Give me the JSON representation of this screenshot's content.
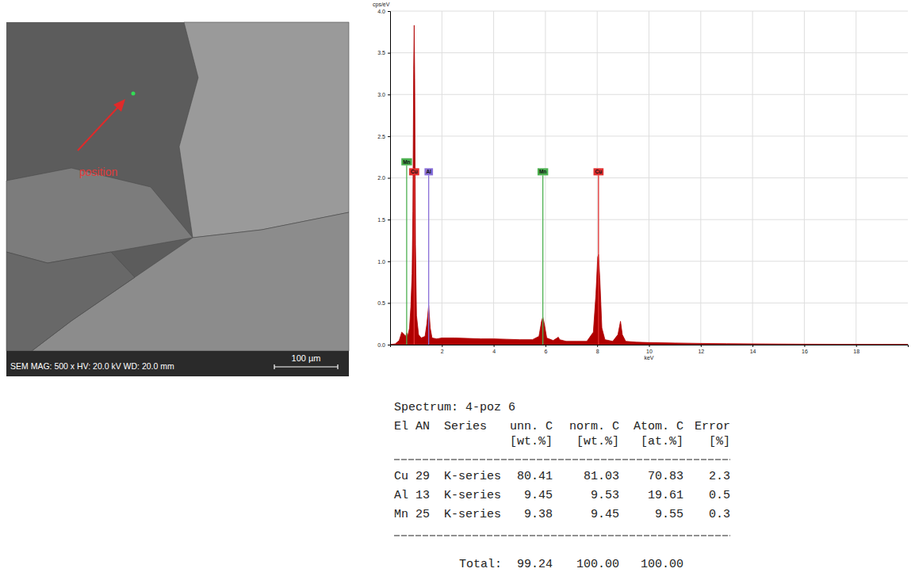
{
  "chart_data": {
    "type": "area",
    "x_label": "keV",
    "y_label": "cps/eV",
    "color": "#b00000",
    "xlim": [
      0,
      20
    ],
    "ylim": [
      0,
      4
    ],
    "xticks": [
      2,
      4,
      6,
      8,
      10,
      12,
      14,
      16,
      18
    ],
    "yticks": [
      {
        "value": 0,
        "label": "0.0"
      },
      0.5,
      {
        "value": 1,
        "label": "1.0"
      },
      1.5,
      {
        "value": 2,
        "label": "2.0"
      },
      2.5,
      {
        "value": 3,
        "label": "3.0"
      },
      3.5,
      {
        "value": 4,
        "label": "4.0"
      }
    ],
    "grid": true,
    "x": [
      0.0,
      0.2,
      0.35,
      0.45,
      0.55,
      0.6,
      0.64,
      0.68,
      0.75,
      0.8,
      0.85,
      0.88,
      0.91,
      0.93,
      0.95,
      0.98,
      1.02,
      1.1,
      1.2,
      1.35,
      1.42,
      1.49,
      1.55,
      1.62,
      1.8,
      2.0,
      2.5,
      3.0,
      3.5,
      4.0,
      4.5,
      5.0,
      5.5,
      5.75,
      5.85,
      5.9,
      5.95,
      6.05,
      6.3,
      6.45,
      6.5,
      6.55,
      6.8,
      7.2,
      7.6,
      7.85,
      7.95,
      8.02,
      8.05,
      8.1,
      8.18,
      8.3,
      8.6,
      8.8,
      8.9,
      8.97,
      9.1,
      9.5,
      10,
      11,
      12,
      13,
      14,
      15,
      16,
      17,
      18,
      19,
      20
    ],
    "values": [
      0,
      0.01,
      0.05,
      0.15,
      0.12,
      0.1,
      0.14,
      0.1,
      0.2,
      0.45,
      0.85,
      1.6,
      3.3,
      3.83,
      3.2,
      1.2,
      0.35,
      0.12,
      0.08,
      0.1,
      0.25,
      0.47,
      0.2,
      0.08,
      0.07,
      0.08,
      0.08,
      0.075,
      0.07,
      0.07,
      0.065,
      0.06,
      0.06,
      0.1,
      0.28,
      0.33,
      0.26,
      0.08,
      0.05,
      0.08,
      0.09,
      0.06,
      0.04,
      0.04,
      0.04,
      0.15,
      0.6,
      1.05,
      1.08,
      0.8,
      0.2,
      0.06,
      0.04,
      0.12,
      0.28,
      0.12,
      0.04,
      0.03,
      0.025,
      0.02,
      0.015,
      0.012,
      0.01,
      0.008,
      0.006,
      0.005,
      0.004,
      0.003,
      0.003
    ],
    "annotations": [
      {
        "label": "Mn",
        "x": 0.64,
        "y": 2.15,
        "color": "#4cb050"
      },
      {
        "label": "Cu",
        "x": 0.93,
        "y": 2.03,
        "color": "#e03030"
      },
      {
        "label": "Al",
        "x": 1.49,
        "y": 2.03,
        "color": "#8a70d8"
      },
      {
        "label": "Mn",
        "x": 5.9,
        "y": 2.03,
        "color": "#4cb050"
      },
      {
        "label": "Cu",
        "x": 8.05,
        "y": 2.03,
        "color": "#e03030"
      }
    ]
  },
  "sem_image": {
    "label": "position",
    "info": "SEM MAG: 500 x HV: 20.0 kV WD: 20.0 mm",
    "scale_bar": "100 µm"
  },
  "eds_table": {
    "title": "Spectrum: 4-poz 6",
    "header": [
      "El",
      "AN",
      "Series",
      "unn. C",
      "norm. C",
      "Atom. C",
      "Error"
    ],
    "units": [
      "[wt.%]",
      "[wt.%]",
      "[at.%]",
      "[%]"
    ],
    "rows": [
      [
        "Cu",
        29,
        "K-series",
        80.41,
        81.03,
        70.83,
        2.3
      ],
      [
        "Al",
        13,
        "K-series",
        9.45,
        9.53,
        19.61,
        0.5
      ],
      [
        "Mn",
        25,
        "K-series",
        9.38,
        9.45,
        9.55,
        0.3
      ]
    ],
    "total_label": "Total:",
    "total": [
      99.24,
      "100.00",
      "100.00"
    ]
  }
}
